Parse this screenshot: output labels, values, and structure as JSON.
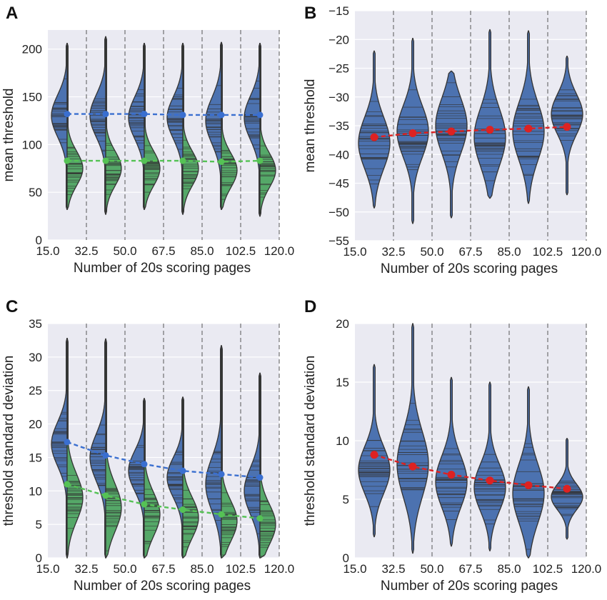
{
  "colors": {
    "background": "#eaeaf2",
    "blue": "#4c72b0",
    "green": "#55a868",
    "red": "#dd2222",
    "blue_line": "#3a6fd0",
    "green_line": "#55c255",
    "outline": "#333333"
  },
  "shared": {
    "xlabel": "Number of 20s scoring pages",
    "xticks": [
      "15.0",
      "32.5",
      "50.0",
      "67.5",
      "85.0",
      "102.5",
      "120.0"
    ],
    "xlim": [
      15.0,
      120.0
    ],
    "boundaries": [
      32.5,
      50.0,
      67.5,
      85.0,
      102.5,
      120.0
    ]
  },
  "chart_data": [
    {
      "panel": "A",
      "type": "violin",
      "split": true,
      "ylabel": "mean threshold",
      "ylim": [
        0,
        220
      ],
      "yticks": [
        "0",
        "50",
        "100",
        "150",
        "200"
      ],
      "x": [
        23.75,
        41.25,
        58.75,
        76.25,
        93.75,
        111.25
      ],
      "series": [
        {
          "name": "blue",
          "side": "left",
          "color": "#4c72b0",
          "line_color": "#3a6fd0",
          "means": [
            132,
            132,
            132,
            131,
            131,
            131
          ],
          "min": [
            32,
            27,
            32,
            27,
            32,
            25
          ],
          "max": [
            206,
            213,
            206,
            206,
            207,
            206
          ],
          "mode": [
            130,
            130,
            128,
            128,
            125,
            128
          ],
          "spread": [
            22,
            22,
            22,
            22,
            24,
            23
          ]
        },
        {
          "name": "green",
          "side": "right",
          "color": "#55a868",
          "line_color": "#55c255",
          "means": [
            83,
            83,
            83,
            83,
            82,
            83
          ],
          "min": [
            32,
            27,
            32,
            27,
            32,
            25
          ],
          "max": [
            206,
            213,
            206,
            206,
            207,
            206
          ],
          "mode": [
            75,
            75,
            75,
            75,
            73,
            73
          ],
          "spread": [
            18,
            18,
            18,
            18,
            18,
            18
          ]
        }
      ]
    },
    {
      "panel": "B",
      "type": "violin",
      "split": false,
      "ylabel": "mean threshold",
      "ylim": [
        -55,
        -15
      ],
      "yticks": [
        "−15",
        "−20",
        "−25",
        "−30",
        "−35",
        "−40",
        "−45",
        "−50",
        "−55"
      ],
      "x": [
        23.75,
        41.25,
        58.75,
        76.25,
        93.75,
        111.25
      ],
      "series": [
        {
          "name": "mean",
          "color": "#4c72b0",
          "line_color": "#dd2222",
          "means": [
            -37.0,
            -36.3,
            -36.0,
            -35.7,
            -35.5,
            -35.2
          ],
          "min": [
            -49.3,
            -52.0,
            -51.0,
            -47.6,
            -48.5,
            -47.0
          ],
          "max": [
            -22.0,
            -19.8,
            -25.5,
            -18.3,
            -18.5,
            -22.9
          ],
          "mode": [
            -38,
            -36,
            -35,
            -37,
            -36,
            -33
          ],
          "spread": [
            4.5,
            4.5,
            4.8,
            5.0,
            5.0,
            3.5
          ]
        }
      ]
    },
    {
      "panel": "C",
      "type": "violin",
      "split": true,
      "ylabel": "threshold standard deviation",
      "ylim": [
        0,
        35
      ],
      "yticks": [
        "0",
        "5",
        "10",
        "15",
        "20",
        "25",
        "30",
        "35"
      ],
      "x": [
        23.75,
        41.25,
        58.75,
        76.25,
        93.75,
        111.25
      ],
      "series": [
        {
          "name": "blue",
          "side": "left",
          "color": "#4c72b0",
          "line_color": "#3a6fd0",
          "means": [
            17.3,
            15.3,
            14.0,
            13.0,
            12.5,
            12.0
          ],
          "min": [
            0.0,
            0.0,
            0.0,
            0.0,
            0.0,
            0.0
          ],
          "max": [
            32.8,
            32.7,
            23.8,
            24.0,
            31.7,
            27.6
          ],
          "mode": [
            17,
            15,
            13,
            12,
            11,
            10
          ],
          "spread": [
            3.3,
            3.5,
            3.0,
            3.0,
            4.0,
            3.5
          ]
        },
        {
          "name": "green",
          "side": "right",
          "color": "#55a868",
          "line_color": "#55c255",
          "means": [
            11.0,
            9.3,
            8.0,
            7.2,
            6.5,
            5.9
          ],
          "min": [
            0.0,
            0.0,
            0.0,
            0.0,
            0.0,
            0.0
          ],
          "max": [
            32.8,
            32.7,
            23.8,
            24.0,
            31.7,
            27.6
          ],
          "mode": [
            9.0,
            7.5,
            6.5,
            6.0,
            5.5,
            5.0
          ],
          "spread": [
            3.5,
            3.5,
            3.2,
            3.0,
            3.0,
            3.0
          ]
        }
      ]
    },
    {
      "panel": "D",
      "type": "violin",
      "split": false,
      "ylabel": "threshold standard deviation",
      "ylim": [
        0,
        20
      ],
      "yticks": [
        "0",
        "5",
        "10",
        "15",
        "20"
      ],
      "x": [
        23.75,
        41.25,
        58.75,
        76.25,
        93.75,
        111.25
      ],
      "series": [
        {
          "name": "mean",
          "color": "#4c72b0",
          "line_color": "#dd2222",
          "means": [
            8.8,
            7.8,
            7.1,
            6.6,
            6.2,
            5.9
          ],
          "min": [
            1.8,
            0.4,
            1.0,
            0.6,
            0.0,
            1.6
          ],
          "max": [
            16.5,
            20.0,
            15.4,
            15.0,
            14.6,
            10.2
          ],
          "mode": [
            7.5,
            8.0,
            6.5,
            6.0,
            5.5,
            5.2
          ],
          "spread": [
            2.0,
            2.8,
            2.2,
            2.0,
            2.5,
            1.1
          ]
        }
      ]
    }
  ]
}
